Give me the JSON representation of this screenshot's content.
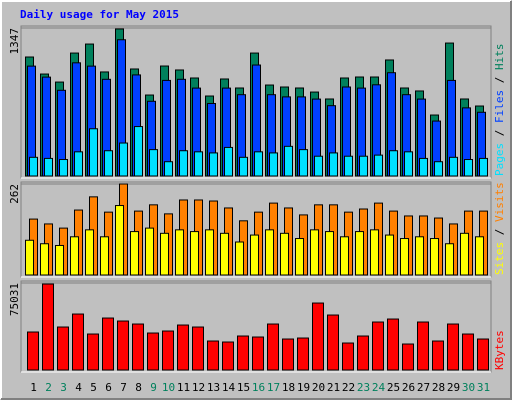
{
  "title": "Daily usage for May 2015",
  "categories": [
    "1",
    "2",
    "3",
    "4",
    "5",
    "6",
    "7",
    "8",
    "9",
    "10",
    "11",
    "12",
    "13",
    "14",
    "15",
    "16",
    "17",
    "18",
    "19",
    "20",
    "21",
    "22",
    "23",
    "24",
    "25",
    "26",
    "27",
    "28",
    "29",
    "30",
    "31"
  ],
  "category_colors": [
    "#000000",
    "#00805c",
    "#00805c",
    "#000000",
    "#000000",
    "#000000",
    "#000000",
    "#000000",
    "#00805c",
    "#00805c",
    "#000000",
    "#000000",
    "#000000",
    "#000000",
    "#000000",
    "#00805c",
    "#00805c",
    "#000000",
    "#000000",
    "#000000",
    "#000000",
    "#000000",
    "#00805c",
    "#00805c",
    "#000000",
    "#000000",
    "#000000",
    "#000000",
    "#000000",
    "#00805c",
    "#00805c"
  ],
  "legend_separator": " / ",
  "chart_data": [
    {
      "type": "bar",
      "ylim": [
        0,
        1347
      ],
      "yticks": [
        1347
      ],
      "series": [
        {
          "name": "Hits",
          "color": "#00805c",
          "values": [
            1083,
            928,
            855,
            1119,
            1201,
            947,
            1338,
            974,
            737,
            1001,
            965,
            892,
            728,
            883,
            801,
            1119,
            828,
            810,
            801,
            764,
            701,
            892,
            901,
            901,
            1056,
            801,
            774,
            555,
            1210,
            701,
            637
          ]
        },
        {
          "name": "Files",
          "color": "#0040ff",
          "values": [
            1000,
            900,
            780,
            1030,
            1000,
            880,
            1240,
            920,
            680,
            870,
            880,
            800,
            660,
            800,
            740,
            1010,
            740,
            720,
            720,
            700,
            640,
            810,
            800,
            830,
            940,
            740,
            700,
            500,
            870,
            620,
            580
          ]
        },
        {
          "name": "Pages",
          "color": "#00e0ff",
          "values": [
            170,
            160,
            150,
            220,
            430,
            230,
            300,
            450,
            240,
            130,
            230,
            220,
            210,
            260,
            170,
            220,
            210,
            270,
            240,
            180,
            210,
            180,
            180,
            190,
            230,
            220,
            160,
            130,
            170,
            150,
            160
          ]
        }
      ]
    },
    {
      "type": "bar",
      "ylim": [
        0,
        262
      ],
      "yticks": [
        262
      ],
      "series": [
        {
          "name": "Visits",
          "color": "#ff8000",
          "values": [
            161,
            147,
            135,
            187,
            225,
            181,
            262,
            184,
            202,
            176,
            216,
            216,
            213,
            193,
            156,
            181,
            207,
            193,
            173,
            202,
            202,
            181,
            190,
            207,
            184,
            170,
            170,
            164,
            147,
            184,
            184
          ]
        },
        {
          "name": "Sites",
          "color": "#ffff00",
          "values": [
            100,
            90,
            85,
            110,
            130,
            110,
            200,
            125,
            135,
            120,
            130,
            125,
            130,
            120,
            95,
            115,
            130,
            120,
            105,
            130,
            125,
            110,
            125,
            130,
            115,
            105,
            110,
            105,
            90,
            120,
            110
          ]
        }
      ]
    },
    {
      "type": "bar",
      "ylim": [
        0,
        75031
      ],
      "yticks": [
        75031
      ],
      "series": [
        {
          "name": "KBytes",
          "color": "#ff0000",
          "values": [
            32760,
            74130,
            37070,
            48270,
            31030,
            44820,
            42240,
            39650,
            31890,
            33620,
            38790,
            37070,
            25000,
            24140,
            29310,
            28450,
            39650,
            26720,
            27580,
            57750,
            47410,
            23270,
            29310,
            41380,
            43960,
            22410,
            41380,
            25000,
            39650,
            31030,
            26720
          ]
        }
      ]
    }
  ]
}
